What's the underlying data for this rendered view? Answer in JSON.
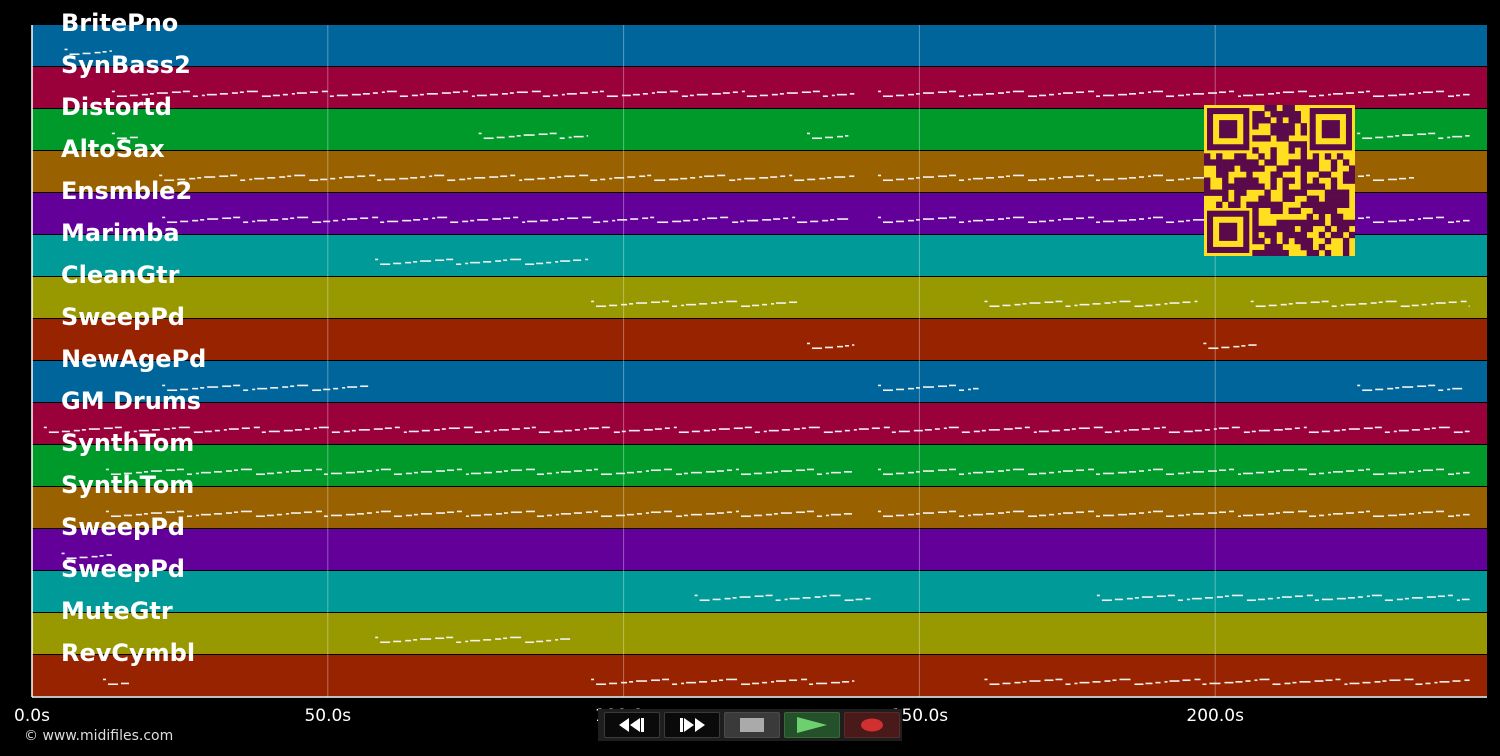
{
  "tracks": [
    {
      "name": "BritePno",
      "color": "#00659a"
    },
    {
      "name": "SynBass2",
      "color": "#9a0039"
    },
    {
      "name": "Distortd",
      "color": "#009a2b"
    },
    {
      "name": "AltoSax",
      "color": "#9a6100"
    },
    {
      "name": "Ensmble2",
      "color": "#620099"
    },
    {
      "name": "Marimba",
      "color": "#009a98"
    },
    {
      "name": "CleanGtr",
      "color": "#989800"
    },
    {
      "name": "SweepPd",
      "color": "#982300"
    },
    {
      "name": "NewAgePd",
      "color": "#00659a"
    },
    {
      "name": "GM Drums",
      "color": "#9a0039"
    },
    {
      "name": "SynthTom",
      "color": "#009a2b"
    },
    {
      "name": "SynthTom",
      "color": "#9a6100"
    },
    {
      "name": "SweepPd",
      "color": "#620099"
    },
    {
      "name": "SweepPd",
      "color": "#009a98"
    },
    {
      "name": "MuteGtr",
      "color": "#989800"
    },
    {
      "name": "RevCymbl",
      "color": "#982300"
    }
  ],
  "timeline": {
    "ticks": [
      {
        "seconds": 0,
        "label": "0.0s"
      },
      {
        "seconds": 50,
        "label": "50.0s"
      },
      {
        "seconds": 100,
        "label": "100.0s"
      },
      {
        "seconds": 150,
        "label": "150.0s"
      },
      {
        "seconds": 200,
        "label": "200.0s"
      }
    ],
    "end_seconds": 246
  },
  "note_activity": [
    [
      [
        5.5,
        13.5
      ]
    ],
    [
      [
        13.5,
        139
      ],
      [
        143,
        243
      ]
    ],
    [
      [
        13.5,
        18.5
      ],
      [
        75.5,
        94
      ],
      [
        131,
        138
      ],
      [
        199,
        211
      ],
      [
        224,
        243
      ]
    ],
    [
      [
        21.5,
        139
      ],
      [
        143,
        234
      ]
    ],
    [
      [
        22,
        138
      ],
      [
        143,
        243
      ]
    ],
    [
      [
        58,
        94
      ]
    ],
    [
      [
        94.5,
        130
      ],
      [
        161,
        197
      ],
      [
        206,
        243
      ]
    ],
    [
      [
        131,
        139
      ],
      [
        198,
        207
      ]
    ],
    [
      [
        22,
        57
      ],
      [
        143,
        160
      ],
      [
        224,
        242
      ]
    ],
    [
      [
        2,
        243
      ]
    ],
    [
      [
        12.5,
        139
      ],
      [
        143,
        243
      ]
    ],
    [
      [
        12.5,
        139
      ],
      [
        143,
        243
      ]
    ],
    [
      [
        5,
        13.5
      ]
    ],
    [
      [
        112,
        142
      ],
      [
        180,
        243
      ]
    ],
    [
      [
        58,
        91
      ]
    ],
    [
      [
        12,
        17
      ],
      [
        94.5,
        139
      ],
      [
        161,
        243
      ]
    ]
  ],
  "transport": {
    "rewind_icon": "rewind-icon",
    "fast_forward_icon": "fast-forward-icon",
    "stop_icon": "stop-icon",
    "play_icon": "play-icon",
    "record_icon": "record-icon"
  },
  "qr_icon": "qr-code-icon",
  "copyright": "© www.midifiles.com"
}
